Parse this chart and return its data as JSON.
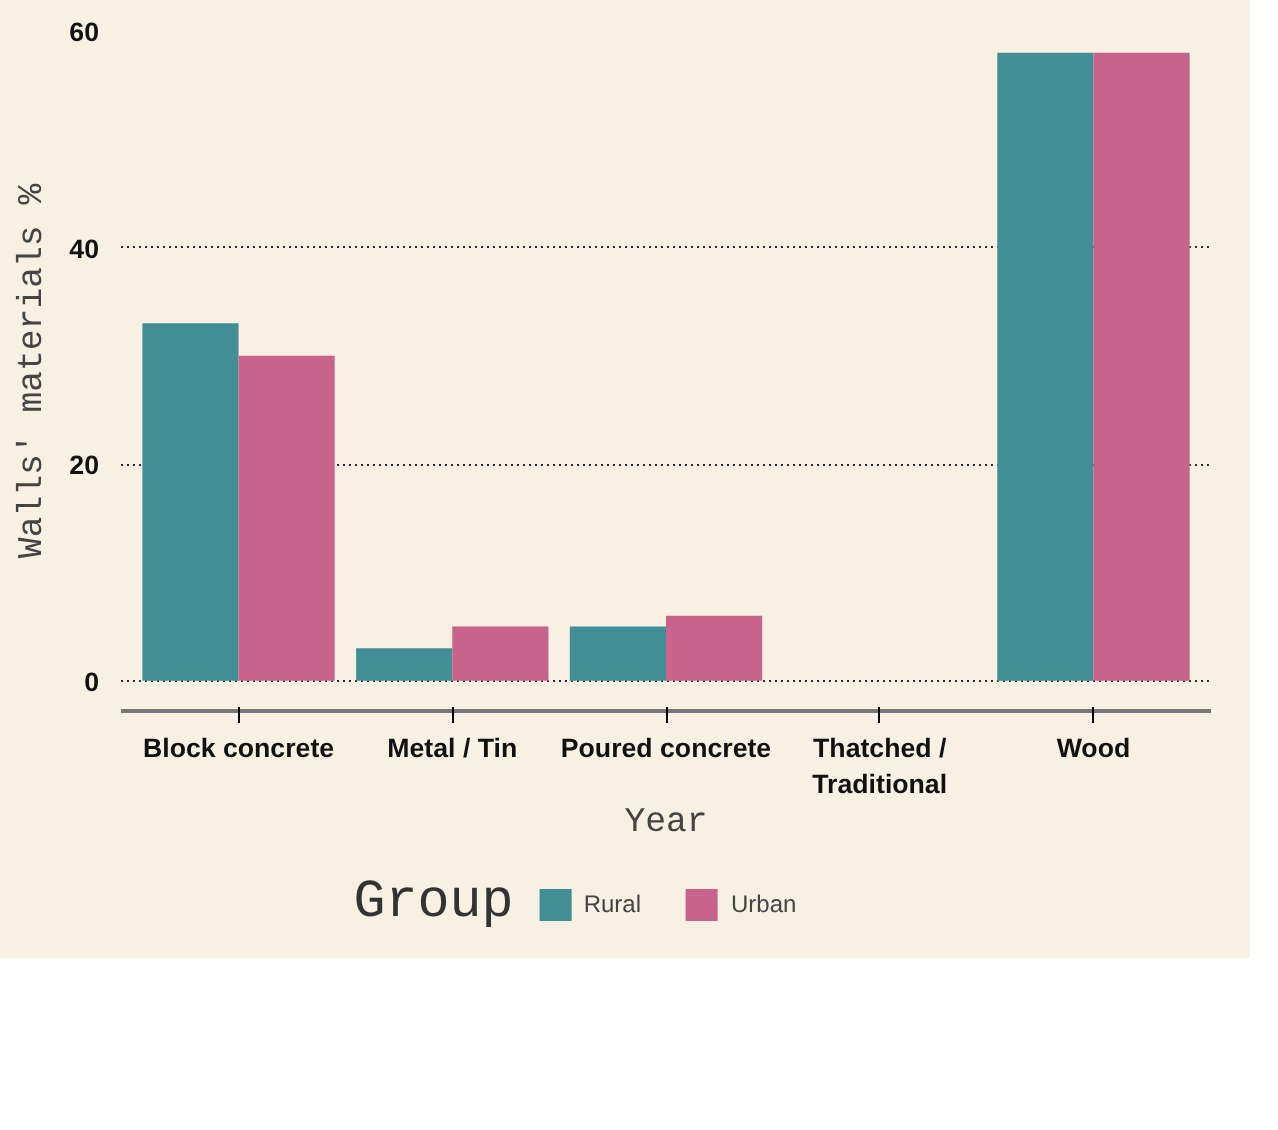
{
  "chart_data": {
    "type": "bar",
    "xlabel": "Year",
    "ylabel": "Walls' materials %",
    "legend_title": "Group",
    "categories": [
      "Block concrete",
      "Metal / Tin",
      "Poured concrete",
      "Thatched / Traditional",
      "Wood"
    ],
    "series": [
      {
        "name": "Rural",
        "color": "#418e97",
        "values": [
          33,
          3,
          5,
          0,
          58
        ]
      },
      {
        "name": "Urban",
        "color": "#c8648c",
        "values": [
          30,
          5,
          6,
          0,
          58
        ]
      }
    ],
    "ylim": [
      -2.8,
      60
    ],
    "yticks": [
      0,
      20,
      40,
      60
    ],
    "grid": "y",
    "legend": "bottom"
  }
}
